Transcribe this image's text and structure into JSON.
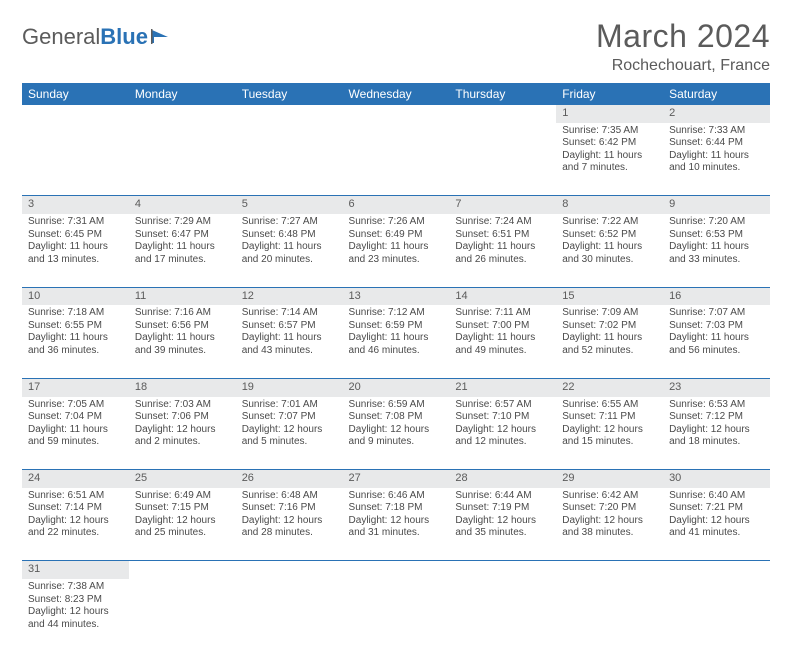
{
  "brand": {
    "word1": "General",
    "word2": "Blue"
  },
  "title": "March 2024",
  "location": "Rochechouart, France",
  "colors": {
    "header_bg": "#2a72b5",
    "header_text": "#ffffff",
    "daynum_bg": "#e8e9ea",
    "text": "#4a4a4a",
    "border": "#2a72b5"
  },
  "weekdays": [
    "Sunday",
    "Monday",
    "Tuesday",
    "Wednesday",
    "Thursday",
    "Friday",
    "Saturday"
  ],
  "weeks": [
    [
      null,
      null,
      null,
      null,
      null,
      {
        "n": "1",
        "sr": "Sunrise: 7:35 AM",
        "ss": "Sunset: 6:42 PM",
        "d1": "Daylight: 11 hours",
        "d2": "and 7 minutes."
      },
      {
        "n": "2",
        "sr": "Sunrise: 7:33 AM",
        "ss": "Sunset: 6:44 PM",
        "d1": "Daylight: 11 hours",
        "d2": "and 10 minutes."
      }
    ],
    [
      {
        "n": "3",
        "sr": "Sunrise: 7:31 AM",
        "ss": "Sunset: 6:45 PM",
        "d1": "Daylight: 11 hours",
        "d2": "and 13 minutes."
      },
      {
        "n": "4",
        "sr": "Sunrise: 7:29 AM",
        "ss": "Sunset: 6:47 PM",
        "d1": "Daylight: 11 hours",
        "d2": "and 17 minutes."
      },
      {
        "n": "5",
        "sr": "Sunrise: 7:27 AM",
        "ss": "Sunset: 6:48 PM",
        "d1": "Daylight: 11 hours",
        "d2": "and 20 minutes."
      },
      {
        "n": "6",
        "sr": "Sunrise: 7:26 AM",
        "ss": "Sunset: 6:49 PM",
        "d1": "Daylight: 11 hours",
        "d2": "and 23 minutes."
      },
      {
        "n": "7",
        "sr": "Sunrise: 7:24 AM",
        "ss": "Sunset: 6:51 PM",
        "d1": "Daylight: 11 hours",
        "d2": "and 26 minutes."
      },
      {
        "n": "8",
        "sr": "Sunrise: 7:22 AM",
        "ss": "Sunset: 6:52 PM",
        "d1": "Daylight: 11 hours",
        "d2": "and 30 minutes."
      },
      {
        "n": "9",
        "sr": "Sunrise: 7:20 AM",
        "ss": "Sunset: 6:53 PM",
        "d1": "Daylight: 11 hours",
        "d2": "and 33 minutes."
      }
    ],
    [
      {
        "n": "10",
        "sr": "Sunrise: 7:18 AM",
        "ss": "Sunset: 6:55 PM",
        "d1": "Daylight: 11 hours",
        "d2": "and 36 minutes."
      },
      {
        "n": "11",
        "sr": "Sunrise: 7:16 AM",
        "ss": "Sunset: 6:56 PM",
        "d1": "Daylight: 11 hours",
        "d2": "and 39 minutes."
      },
      {
        "n": "12",
        "sr": "Sunrise: 7:14 AM",
        "ss": "Sunset: 6:57 PM",
        "d1": "Daylight: 11 hours",
        "d2": "and 43 minutes."
      },
      {
        "n": "13",
        "sr": "Sunrise: 7:12 AM",
        "ss": "Sunset: 6:59 PM",
        "d1": "Daylight: 11 hours",
        "d2": "and 46 minutes."
      },
      {
        "n": "14",
        "sr": "Sunrise: 7:11 AM",
        "ss": "Sunset: 7:00 PM",
        "d1": "Daylight: 11 hours",
        "d2": "and 49 minutes."
      },
      {
        "n": "15",
        "sr": "Sunrise: 7:09 AM",
        "ss": "Sunset: 7:02 PM",
        "d1": "Daylight: 11 hours",
        "d2": "and 52 minutes."
      },
      {
        "n": "16",
        "sr": "Sunrise: 7:07 AM",
        "ss": "Sunset: 7:03 PM",
        "d1": "Daylight: 11 hours",
        "d2": "and 56 minutes."
      }
    ],
    [
      {
        "n": "17",
        "sr": "Sunrise: 7:05 AM",
        "ss": "Sunset: 7:04 PM",
        "d1": "Daylight: 11 hours",
        "d2": "and 59 minutes."
      },
      {
        "n": "18",
        "sr": "Sunrise: 7:03 AM",
        "ss": "Sunset: 7:06 PM",
        "d1": "Daylight: 12 hours",
        "d2": "and 2 minutes."
      },
      {
        "n": "19",
        "sr": "Sunrise: 7:01 AM",
        "ss": "Sunset: 7:07 PM",
        "d1": "Daylight: 12 hours",
        "d2": "and 5 minutes."
      },
      {
        "n": "20",
        "sr": "Sunrise: 6:59 AM",
        "ss": "Sunset: 7:08 PM",
        "d1": "Daylight: 12 hours",
        "d2": "and 9 minutes."
      },
      {
        "n": "21",
        "sr": "Sunrise: 6:57 AM",
        "ss": "Sunset: 7:10 PM",
        "d1": "Daylight: 12 hours",
        "d2": "and 12 minutes."
      },
      {
        "n": "22",
        "sr": "Sunrise: 6:55 AM",
        "ss": "Sunset: 7:11 PM",
        "d1": "Daylight: 12 hours",
        "d2": "and 15 minutes."
      },
      {
        "n": "23",
        "sr": "Sunrise: 6:53 AM",
        "ss": "Sunset: 7:12 PM",
        "d1": "Daylight: 12 hours",
        "d2": "and 18 minutes."
      }
    ],
    [
      {
        "n": "24",
        "sr": "Sunrise: 6:51 AM",
        "ss": "Sunset: 7:14 PM",
        "d1": "Daylight: 12 hours",
        "d2": "and 22 minutes."
      },
      {
        "n": "25",
        "sr": "Sunrise: 6:49 AM",
        "ss": "Sunset: 7:15 PM",
        "d1": "Daylight: 12 hours",
        "d2": "and 25 minutes."
      },
      {
        "n": "26",
        "sr": "Sunrise: 6:48 AM",
        "ss": "Sunset: 7:16 PM",
        "d1": "Daylight: 12 hours",
        "d2": "and 28 minutes."
      },
      {
        "n": "27",
        "sr": "Sunrise: 6:46 AM",
        "ss": "Sunset: 7:18 PM",
        "d1": "Daylight: 12 hours",
        "d2": "and 31 minutes."
      },
      {
        "n": "28",
        "sr": "Sunrise: 6:44 AM",
        "ss": "Sunset: 7:19 PM",
        "d1": "Daylight: 12 hours",
        "d2": "and 35 minutes."
      },
      {
        "n": "29",
        "sr": "Sunrise: 6:42 AM",
        "ss": "Sunset: 7:20 PM",
        "d1": "Daylight: 12 hours",
        "d2": "and 38 minutes."
      },
      {
        "n": "30",
        "sr": "Sunrise: 6:40 AM",
        "ss": "Sunset: 7:21 PM",
        "d1": "Daylight: 12 hours",
        "d2": "and 41 minutes."
      }
    ],
    [
      {
        "n": "31",
        "sr": "Sunrise: 7:38 AM",
        "ss": "Sunset: 8:23 PM",
        "d1": "Daylight: 12 hours",
        "d2": "and 44 minutes."
      },
      null,
      null,
      null,
      null,
      null,
      null
    ]
  ]
}
